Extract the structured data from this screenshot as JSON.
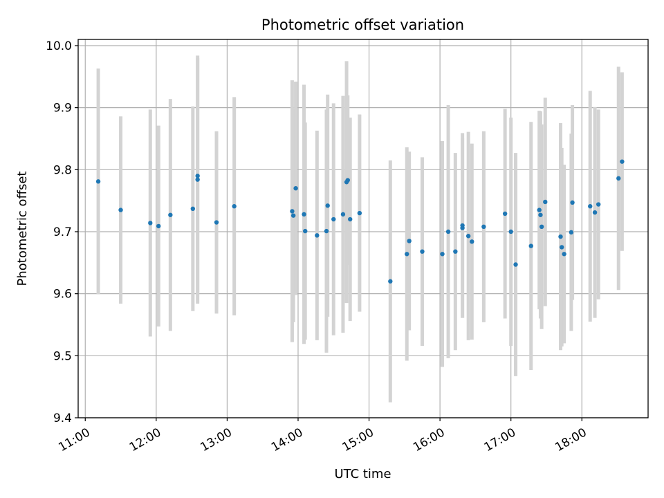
{
  "chart_data": {
    "type": "scatter",
    "title": "Photometric offset variation",
    "xlabel": "UTC time",
    "ylabel": "Photometric offset",
    "x_axis_type": "time",
    "xlim": [
      "10:54",
      "18:56"
    ],
    "ylim": [
      9.4,
      10.01
    ],
    "xticks": [
      "11:00",
      "12:00",
      "13:00",
      "14:00",
      "15:00",
      "16:00",
      "17:00",
      "18:00"
    ],
    "yticks": [
      9.4,
      9.5,
      9.6,
      9.7,
      9.8,
      9.9,
      10.0
    ],
    "ytick_labels": [
      "9.4",
      "9.5",
      "9.6",
      "9.7",
      "9.8",
      "9.9",
      "10.0"
    ],
    "grid": true,
    "legend": "none",
    "colors": {
      "points": "#1f77b4",
      "errorbars": "#d3d3d3",
      "grid": "#b0b0b0",
      "axes": "#000000"
    },
    "series": [
      {
        "x": [
          "11:11",
          "11:30",
          "11:55",
          "12:02",
          "12:12",
          "12:31",
          "12:35",
          "12:35",
          "12:51",
          "13:06",
          "13:55",
          "13:56",
          "13:58",
          "14:05",
          "14:06",
          "14:16",
          "14:24",
          "14:25",
          "14:30",
          "14:38",
          "14:41",
          "14:42",
          "14:44",
          "14:52",
          "15:18",
          "15:32",
          "15:34",
          "15:45",
          "16:02",
          "16:07",
          "16:13",
          "16:19",
          "16:19",
          "16:24",
          "16:27",
          "16:37",
          "16:55",
          "17:00",
          "17:04",
          "17:17",
          "17:24",
          "17:25",
          "17:26",
          "17:29",
          "17:42",
          "17:43",
          "17:45",
          "17:51",
          "17:52",
          "18:07",
          "18:11",
          "18:14",
          "18:31",
          "18:34"
        ],
        "y": [
          9.781,
          9.735,
          9.714,
          9.709,
          9.727,
          9.737,
          9.79,
          9.784,
          9.715,
          9.741,
          9.733,
          9.726,
          9.77,
          9.728,
          9.701,
          9.694,
          9.701,
          9.742,
          9.72,
          9.728,
          9.78,
          9.783,
          9.72,
          9.73,
          9.62,
          9.664,
          9.685,
          9.668,
          9.664,
          9.7,
          9.668,
          9.71,
          9.706,
          9.693,
          9.684,
          9.708,
          9.729,
          9.7,
          9.647,
          9.677,
          9.735,
          9.727,
          9.708,
          9.748,
          9.692,
          9.675,
          9.664,
          9.699,
          9.747,
          9.741,
          9.731,
          9.744,
          9.786,
          9.813
        ],
        "yerr": [
          0.182,
          0.151,
          0.183,
          0.162,
          0.187,
          0.165,
          0.19,
          0.2,
          0.147,
          0.176,
          0.211,
          0.172,
          0.172,
          0.209,
          0.175,
          0.169,
          0.196,
          0.179,
          0.187,
          0.191,
          0.195,
          0.137,
          0.164,
          0.159,
          0.195,
          0.172,
          0.144,
          0.152,
          0.182,
          0.204,
          0.159,
          0.149,
          0.145,
          0.168,
          0.158,
          0.154,
          0.169,
          0.184,
          0.18,
          0.2,
          0.16,
          0.167,
          0.165,
          0.168,
          0.183,
          0.16,
          0.144,
          0.159,
          0.157,
          0.186,
          0.17,
          0.153,
          0.18,
          0.144
        ]
      }
    ]
  }
}
